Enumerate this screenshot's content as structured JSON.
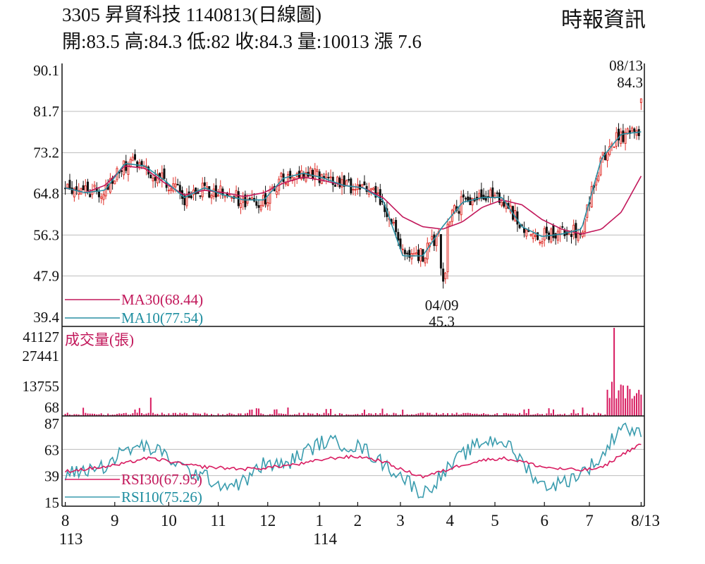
{
  "header": {
    "title": "3305  昇貿科技 1140813(日線圖)",
    "ohlc": "開:83.5 高:84.3 低:82 收:84.3 量:10013 漲 7.6",
    "source": "時報資訊"
  },
  "colors": {
    "up": "#e0302a",
    "down": "#111111",
    "ma30": "#c2185b",
    "ma10": "#2a8fa3",
    "volume": "#d81b60",
    "rsi30": "#d81b60",
    "rsi10": "#3a9cae",
    "grid": "#bdbdbd"
  },
  "chart_data": [
    {
      "type": "candlestick",
      "y_ticks": [
        90.1,
        81.7,
        73.2,
        64.8,
        56.3,
        47.9,
        39.4
      ],
      "ylim": [
        39.4,
        90.1
      ],
      "grid": true,
      "legend": [
        {
          "label": "MA30(68.44)",
          "color": "#c2185b"
        },
        {
          "label": "MA10(77.54)",
          "color": "#2a8fa3"
        }
      ],
      "annotations": [
        {
          "date": "08/13",
          "value": "84.3"
        },
        {
          "date": "04/09",
          "value": "45.3"
        }
      ],
      "last_candle": {
        "open": 83.5,
        "high": 84.3,
        "low": 82,
        "close": 84.3
      },
      "low_point": 45.3,
      "ma30_anchor": [
        66.0,
        65.0,
        66.5,
        70.5,
        70.0,
        67.0,
        64.5,
        65.5,
        65.0,
        64.2,
        65.0,
        67.0,
        68.2,
        67.5,
        66.5,
        66.0,
        64.0,
        60.0,
        58.0,
        57.5,
        59.0,
        62.0,
        63.5,
        62.5,
        59.5,
        57.5,
        56.5,
        57.5,
        61.0,
        68.4
      ],
      "ma10_anchor": [
        66.0,
        65.0,
        65.5,
        71.0,
        70.5,
        67.5,
        64.0,
        66.0,
        64.5,
        63.5,
        63.5,
        68.0,
        69.0,
        68.0,
        66.5,
        66.0,
        63.5,
        52.0,
        52.0,
        58.0,
        63.0,
        64.0,
        64.0,
        58.0,
        56.0,
        56.5,
        57.5,
        72.0,
        77.0,
        77.5
      ]
    },
    {
      "type": "bar",
      "label": "成交量(張)",
      "y_ticks": [
        41127,
        27441,
        13755,
        68
      ],
      "ylim": [
        68,
        41127
      ],
      "peak_value": 41127,
      "last_value": 10013
    },
    {
      "type": "line",
      "y_ticks": [
        87,
        63,
        39,
        15
      ],
      "ylim": [
        15,
        87
      ],
      "legend": [
        {
          "label": "RSI30(67.95)",
          "color": "#d81b60"
        },
        {
          "label": "RSI10(75.26)",
          "color": "#3a9cae"
        }
      ],
      "series": [
        {
          "name": "RSI30",
          "values": [
            43,
            45,
            47,
            50,
            55,
            53,
            49,
            47,
            46,
            45,
            46,
            48,
            50,
            54,
            56,
            56,
            52,
            44,
            38,
            43,
            49,
            53,
            55,
            52,
            47,
            45,
            44,
            46,
            58,
            68
          ]
        },
        {
          "name": "RSI10",
          "values": [
            40,
            44,
            48,
            62,
            66,
            58,
            45,
            38,
            30,
            33,
            50,
            48,
            60,
            70,
            68,
            64,
            50,
            38,
            22,
            40,
            58,
            70,
            72,
            52,
            30,
            32,
            42,
            55,
            86,
            75
          ]
        }
      ]
    }
  ],
  "x_axis": {
    "ticks": [
      {
        "label": "8",
        "sub": "113",
        "pos": 0
      },
      {
        "label": "9",
        "sub": "",
        "pos": 22
      },
      {
        "label": "10",
        "sub": "",
        "pos": 46
      },
      {
        "label": "11",
        "sub": "",
        "pos": 68
      },
      {
        "label": "12",
        "sub": "",
        "pos": 90
      },
      {
        "label": "1",
        "sub": "114",
        "pos": 113
      },
      {
        "label": "2",
        "sub": "",
        "pos": 130
      },
      {
        "label": "3",
        "sub": "",
        "pos": 149
      },
      {
        "label": "4",
        "sub": "",
        "pos": 171
      },
      {
        "label": "5",
        "sub": "",
        "pos": 191
      },
      {
        "label": "6",
        "sub": "",
        "pos": 213
      },
      {
        "label": "7",
        "sub": "",
        "pos": 233
      },
      {
        "label": "8/13",
        "sub": "",
        "pos": 256
      }
    ]
  }
}
